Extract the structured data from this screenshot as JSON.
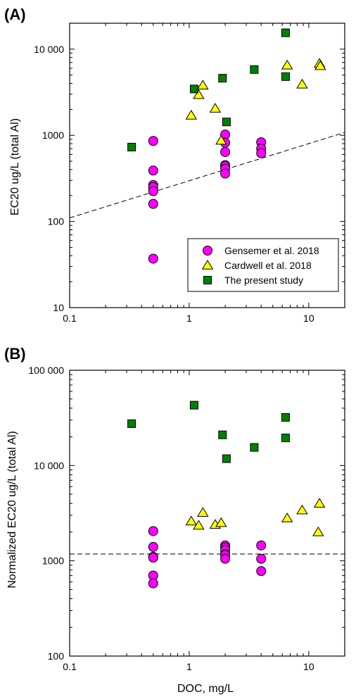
{
  "chart_data": [
    {
      "type": "scatter",
      "panel_label": "(A)",
      "title": "",
      "xlabel": "",
      "ylabel": "EC20 ug/L (total Al)",
      "xscale": "log",
      "yscale": "log",
      "xlim": [
        0.1,
        20
      ],
      "ylim": [
        10,
        20000
      ],
      "xticks": [
        {
          "v": 0.1,
          "label": "0.1"
        },
        {
          "v": 1,
          "label": "1"
        },
        {
          "v": 10,
          "label": "10"
        }
      ],
      "yticks": [
        {
          "v": 10,
          "label": "10"
        },
        {
          "v": 100,
          "label": "100"
        },
        {
          "v": 1000,
          "label": "1000"
        },
        {
          "v": 10000,
          "label": "10 000"
        }
      ],
      "grid": false,
      "legend_position": "bottom-right",
      "reference_line": {
        "style": "dashed",
        "points": [
          [
            0.1,
            110
          ],
          [
            20,
            1080
          ]
        ]
      },
      "series": [
        {
          "name": "Gensemer et al. 2018",
          "marker": "circle",
          "color": "#ff00ff",
          "points": [
            [
              0.5,
              860
            ],
            [
              0.5,
              390
            ],
            [
              0.5,
              265
            ],
            [
              0.5,
              250
            ],
            [
              0.5,
              225
            ],
            [
              0.5,
              160
            ],
            [
              0.5,
              37
            ],
            [
              2,
              1020
            ],
            [
              2,
              820
            ],
            [
              2,
              640
            ],
            [
              2,
              450
            ],
            [
              2,
              440
            ],
            [
              2,
              410
            ],
            [
              2,
              360
            ],
            [
              4,
              830
            ],
            [
              4,
              700
            ],
            [
              4,
              620
            ]
          ]
        },
        {
          "name": "Cardwell et al. 2018",
          "marker": "triangle",
          "color": "#ffff00",
          "points": [
            [
              1.04,
              1700
            ],
            [
              1.2,
              2950
            ],
            [
              1.3,
              3800
            ],
            [
              1.65,
              2050
            ],
            [
              1.85,
              870
            ],
            [
              6.6,
              6500
            ],
            [
              8.8,
              3900
            ],
            [
              12.3,
              6800
            ],
            [
              12.5,
              6400
            ]
          ]
        },
        {
          "name": "The present study",
          "marker": "square",
          "color": "#008000",
          "points": [
            [
              0.33,
              730
            ],
            [
              1.1,
              3450
            ],
            [
              1.9,
              4600
            ],
            [
              2.05,
              1430
            ],
            [
              3.5,
              5800
            ],
            [
              6.4,
              4800
            ],
            [
              6.4,
              15500
            ]
          ]
        }
      ]
    },
    {
      "type": "scatter",
      "panel_label": "(B)",
      "title": "",
      "xlabel": "DOC, mg/L",
      "ylabel": "Normalized EC20 ug/L (total Al)",
      "xscale": "log",
      "yscale": "log",
      "xlim": [
        0.1,
        20
      ],
      "ylim": [
        100,
        100000
      ],
      "xticks": [
        {
          "v": 0.1,
          "label": "0.1"
        },
        {
          "v": 1,
          "label": "1"
        },
        {
          "v": 10,
          "label": "10"
        }
      ],
      "yticks": [
        {
          "v": 100,
          "label": "100"
        },
        {
          "v": 1000,
          "label": "1000"
        },
        {
          "v": 10000,
          "label": "10 000"
        },
        {
          "v": 100000,
          "label": "100 000"
        }
      ],
      "grid": false,
      "reference_line": {
        "style": "dashed",
        "points": [
          [
            0.1,
            1180
          ],
          [
            20,
            1180
          ]
        ]
      },
      "series": [
        {
          "name": "Gensemer et al. 2018",
          "marker": "circle",
          "color": "#ff00ff",
          "points": [
            [
              0.5,
              2050
            ],
            [
              0.5,
              1400
            ],
            [
              0.5,
              1100
            ],
            [
              0.5,
              1080
            ],
            [
              0.5,
              700
            ],
            [
              0.5,
              580
            ],
            [
              2,
              1450
            ],
            [
              2,
              1380
            ],
            [
              2,
              1300
            ],
            [
              2,
              1180
            ],
            [
              2,
              1150
            ],
            [
              2,
              1050
            ],
            [
              4,
              1450
            ],
            [
              4,
              1050
            ],
            [
              4,
              780
            ]
          ]
        },
        {
          "name": "Cardwell et al. 2018",
          "marker": "triangle",
          "color": "#ffff00",
          "points": [
            [
              1.04,
              2600
            ],
            [
              1.2,
              2350
            ],
            [
              1.3,
              3200
            ],
            [
              1.65,
              2400
            ],
            [
              1.85,
              2500
            ],
            [
              6.6,
              2800
            ],
            [
              8.8,
              3400
            ],
            [
              12.3,
              4000
            ],
            [
              12.0,
              2000
            ]
          ]
        },
        {
          "name": "The present study",
          "marker": "square",
          "color": "#008000",
          "points": [
            [
              0.33,
              27500
            ],
            [
              1.1,
              43000
            ],
            [
              1.9,
              21000
            ],
            [
              2.05,
              11800
            ],
            [
              3.5,
              15500
            ],
            [
              6.4,
              32000
            ],
            [
              6.4,
              19500
            ]
          ]
        }
      ]
    }
  ]
}
